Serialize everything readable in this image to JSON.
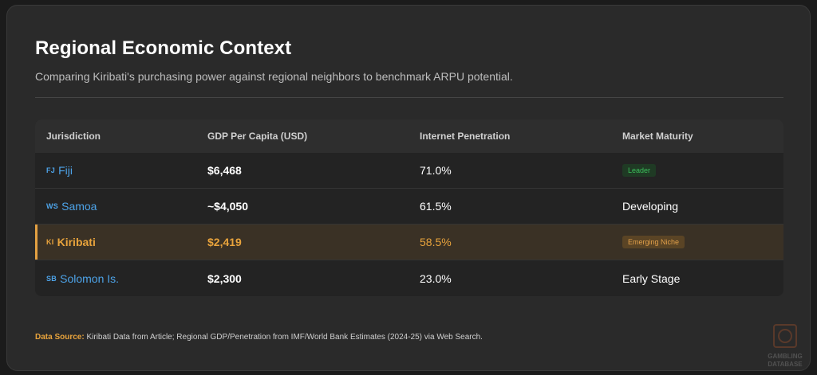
{
  "title": "Regional Economic Context",
  "subtitle": "Comparing Kiribati's purchasing power against regional neighbors to benchmark ARPU potential.",
  "table": {
    "headers": [
      "Jurisdiction",
      "GDP Per Capita (USD)",
      "Internet Penetration",
      "Market Maturity"
    ],
    "rows": [
      {
        "flag": "FJ",
        "name": "Fiji",
        "gdp": "$6,468",
        "penetration": "71.0%",
        "maturity": "Leader",
        "maturity_badge": "leader"
      },
      {
        "flag": "WS",
        "name": "Samoa",
        "gdp": "~$4,050",
        "penetration": "61.5%",
        "maturity": "Developing",
        "maturity_badge": ""
      },
      {
        "flag": "KI",
        "name": "Kiribati",
        "gdp": "$2,419",
        "penetration": "58.5%",
        "maturity": "Emerging Niche",
        "maturity_badge": "niche"
      },
      {
        "flag": "SB",
        "name": "Solomon Is.",
        "gdp": "$2,300",
        "penetration": "23.0%",
        "maturity": "Early Stage",
        "maturity_badge": ""
      }
    ]
  },
  "source": {
    "label": "Data Source:",
    "text": "Kiribati Data from Article; Regional GDP/Penetration from IMF/World Bank Estimates (2024-25) via Web Search."
  },
  "watermark": {
    "line1": "GAMBLING",
    "line2": "DATABASE"
  },
  "colors": {
    "accent": "#e8a33c",
    "link": "#4da3e8",
    "leader": "#3cbf5c"
  }
}
